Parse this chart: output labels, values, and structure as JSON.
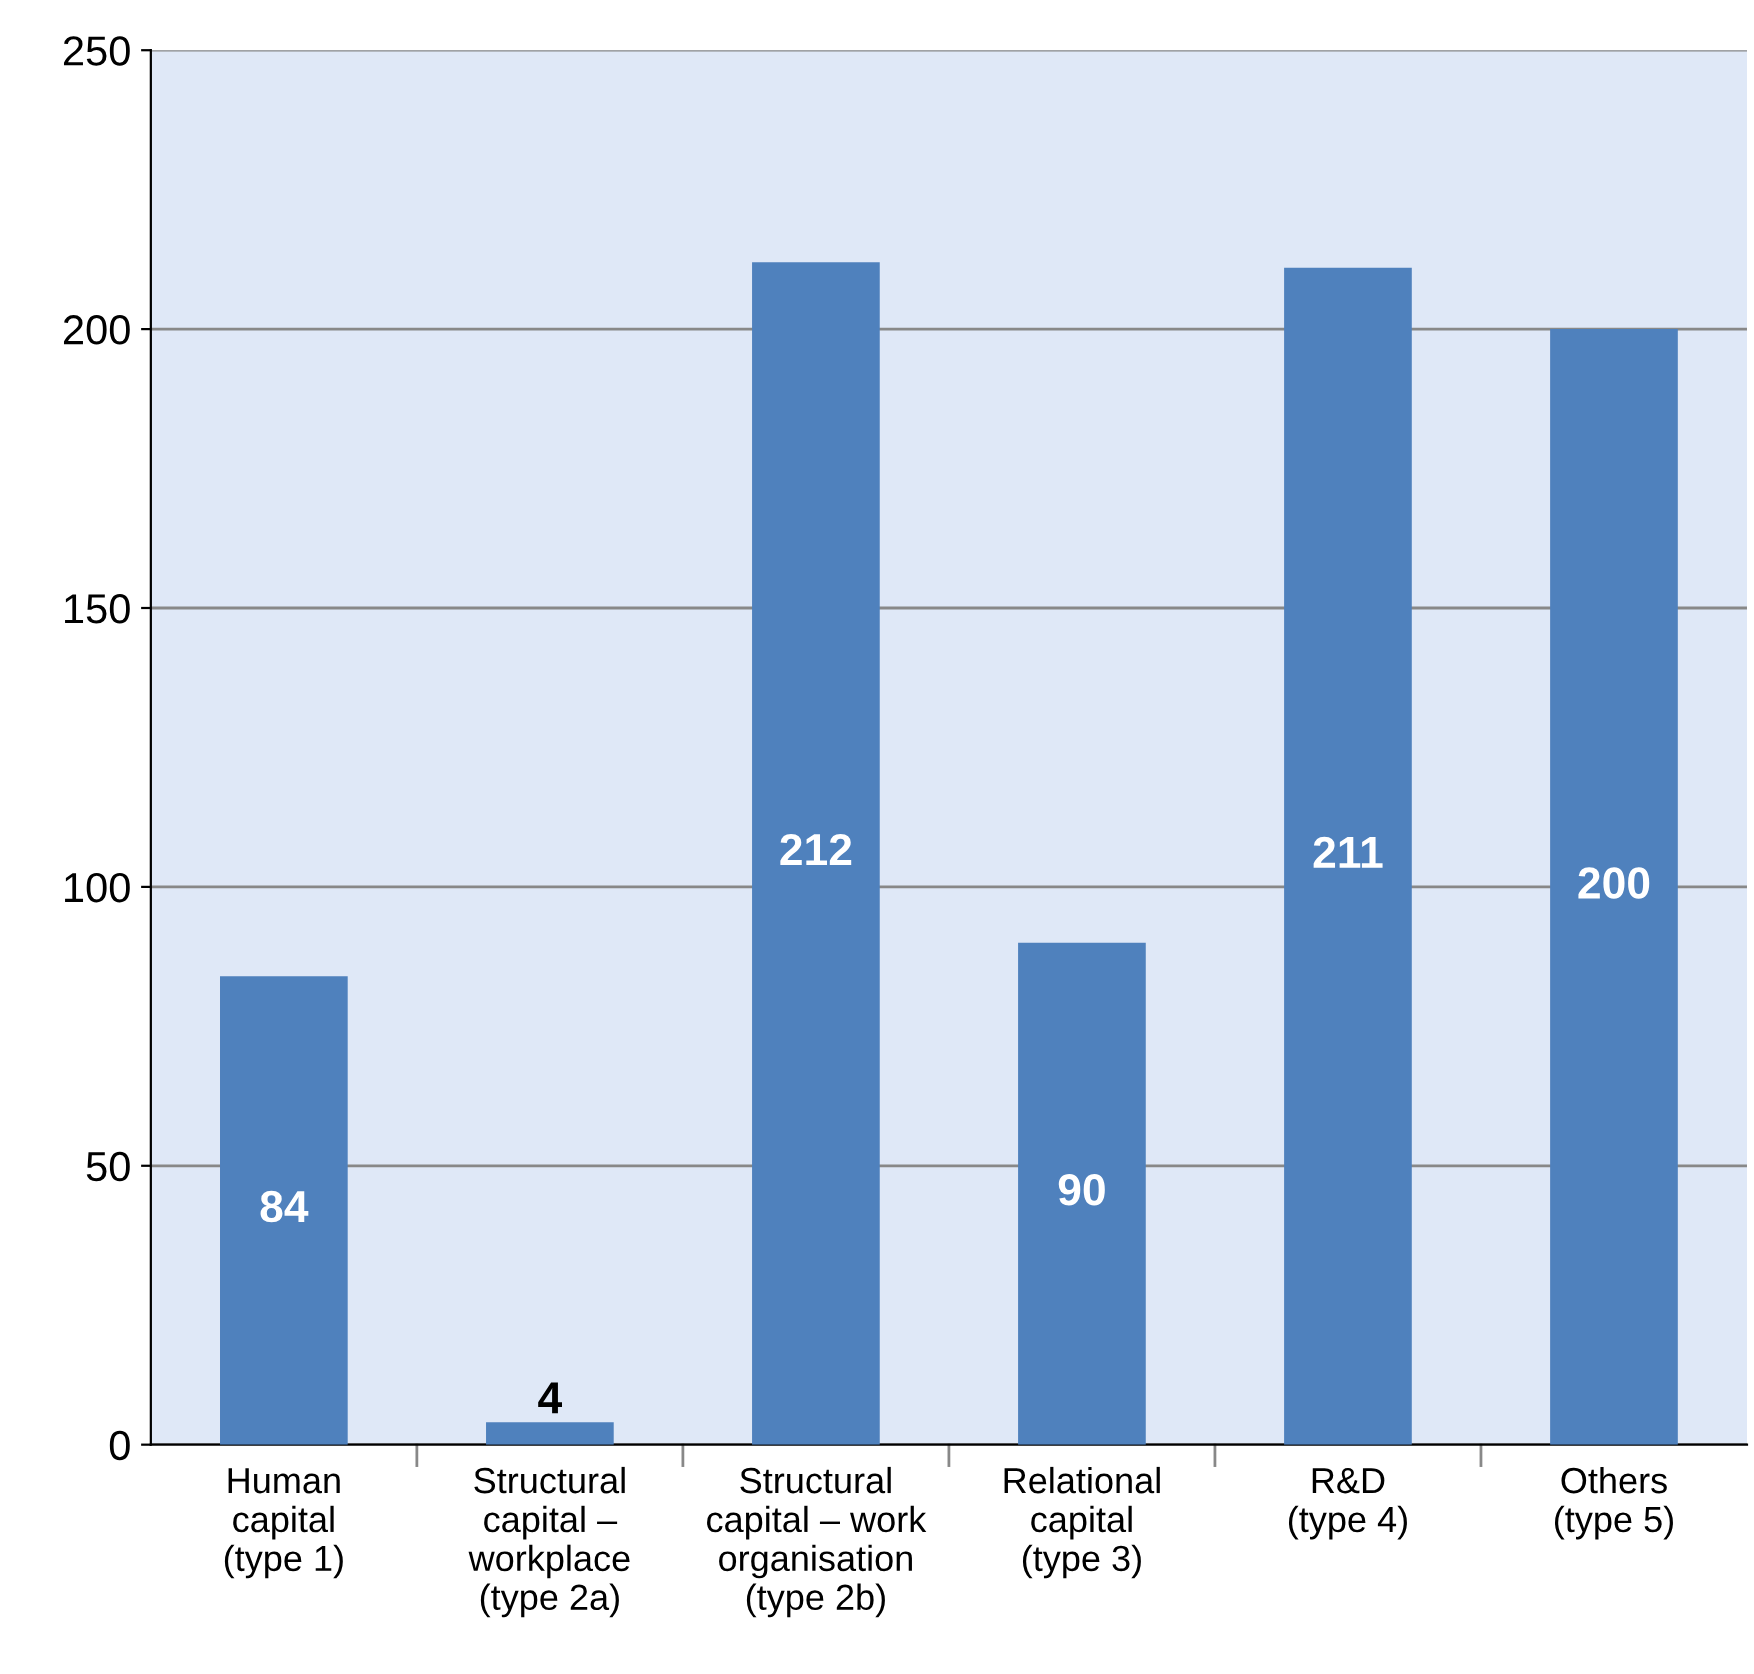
{
  "chart_data": {
    "type": "bar",
    "categories": [
      "Human\ncapital\n(type 1)",
      "Structural\ncapital –\nworkplace\n(type 2a)",
      "Structural\ncapital – work\norganisation\n(type 2b)",
      "Relational\ncapital\n(type 3)",
      "R&D\n(type 4)",
      "Others\n(type 5)"
    ],
    "values": [
      84,
      4,
      212,
      90,
      211,
      200
    ],
    "color": "#4f81bd",
    "ylim": [
      0,
      250
    ],
    "yticks": [
      0,
      50,
      100,
      150,
      200,
      250
    ],
    "grid": "y",
    "data_labels": true
  }
}
